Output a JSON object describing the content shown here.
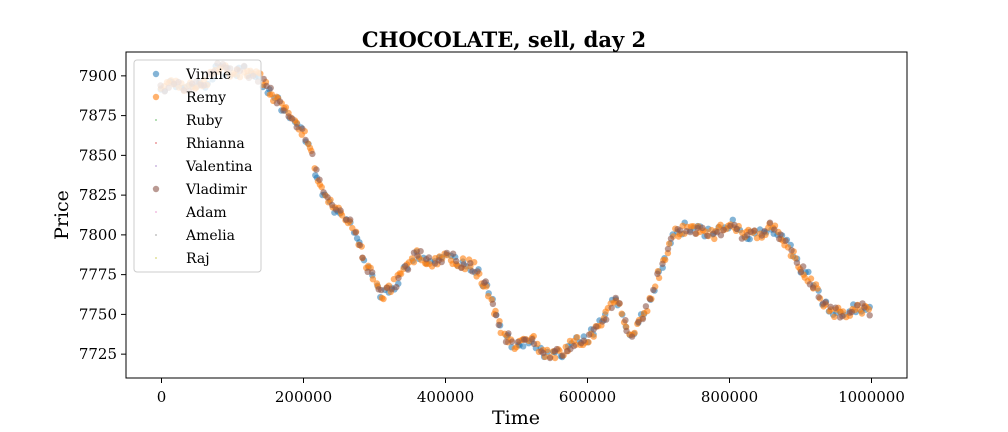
{
  "chart_data": {
    "type": "scatter",
    "title": "CHOCOLATE, sell, day 2",
    "xlabel": "Time",
    "ylabel": "Price",
    "xlim": [
      -50000,
      1050000
    ],
    "ylim": [
      7710,
      7915
    ],
    "xticks": [
      0,
      200000,
      400000,
      600000,
      800000,
      1000000
    ],
    "xtick_labels": [
      "0",
      "200000",
      "400000",
      "600000",
      "800000",
      "1000000"
    ],
    "yticks": [
      7725,
      7750,
      7775,
      7800,
      7825,
      7850,
      7875,
      7900
    ],
    "ytick_labels": [
      "7725",
      "7750",
      "7775",
      "7800",
      "7825",
      "7850",
      "7875",
      "7900"
    ],
    "grid": false,
    "legend_position": "upper-left",
    "price_path": [
      [
        0,
        7893
      ],
      [
        20000,
        7895
      ],
      [
        40000,
        7893
      ],
      [
        60000,
        7895
      ],
      [
        80000,
        7905
      ],
      [
        100000,
        7902
      ],
      [
        120000,
        7903
      ],
      [
        140000,
        7898
      ],
      [
        160000,
        7885
      ],
      [
        180000,
        7875
      ],
      [
        200000,
        7865
      ],
      [
        210000,
        7852
      ],
      [
        220000,
        7835
      ],
      [
        230000,
        7822
      ],
      [
        250000,
        7815
      ],
      [
        270000,
        7805
      ],
      [
        290000,
        7780
      ],
      [
        310000,
        7762
      ],
      [
        330000,
        7770
      ],
      [
        360000,
        7788
      ],
      [
        380000,
        7783
      ],
      [
        400000,
        7787
      ],
      [
        420000,
        7783
      ],
      [
        440000,
        7780
      ],
      [
        460000,
        7765
      ],
      [
        480000,
        7738
      ],
      [
        500000,
        7730
      ],
      [
        520000,
        7735
      ],
      [
        540000,
        7725
      ],
      [
        560000,
        7725
      ],
      [
        580000,
        7732
      ],
      [
        600000,
        7735
      ],
      [
        620000,
        7745
      ],
      [
        640000,
        7760
      ],
      [
        660000,
        7735
      ],
      [
        680000,
        7750
      ],
      [
        700000,
        7775
      ],
      [
        720000,
        7800
      ],
      [
        740000,
        7805
      ],
      [
        760000,
        7803
      ],
      [
        780000,
        7800
      ],
      [
        800000,
        7808
      ],
      [
        820000,
        7800
      ],
      [
        840000,
        7800
      ],
      [
        860000,
        7805
      ],
      [
        880000,
        7795
      ],
      [
        900000,
        7780
      ],
      [
        920000,
        7768
      ],
      [
        940000,
        7752
      ],
      [
        960000,
        7750
      ],
      [
        980000,
        7755
      ],
      [
        995000,
        7752
      ]
    ],
    "series": [
      {
        "name": "Vinnie",
        "color": "#1f77b4",
        "marker": "large",
        "alpha": 0.55,
        "start_time": 0,
        "end_time": 1000000,
        "step": 5500,
        "seed": 11
      },
      {
        "name": "Remy",
        "color": "#ff7f0e",
        "marker": "large",
        "alpha": 0.6,
        "start_time": 0,
        "end_time": 1000000,
        "step": 3600,
        "seed": 23
      },
      {
        "name": "Ruby",
        "color": "#2ca02c",
        "marker": "tiny",
        "alpha": 0.6,
        "start_time": 0,
        "end_time": 0,
        "step": 0,
        "seed": 0
      },
      {
        "name": "Rhianna",
        "color": "#d62728",
        "marker": "tiny",
        "alpha": 0.6,
        "start_time": 0,
        "end_time": 0,
        "step": 0,
        "seed": 0
      },
      {
        "name": "Valentina",
        "color": "#9467bd",
        "marker": "tiny",
        "alpha": 0.6,
        "start_time": 0,
        "end_time": 0,
        "step": 0,
        "seed": 0
      },
      {
        "name": "Vladimir",
        "color": "#8c564b",
        "marker": "large",
        "alpha": 0.6,
        "start_time": 0,
        "end_time": 1000000,
        "step": 6200,
        "seed": 37
      },
      {
        "name": "Adam",
        "color": "#e377c2",
        "marker": "tiny",
        "alpha": 0.6,
        "start_time": 0,
        "end_time": 0,
        "step": 0,
        "seed": 0
      },
      {
        "name": "Amelia",
        "color": "#7f7f7f",
        "marker": "tiny",
        "alpha": 0.6,
        "start_time": 0,
        "end_time": 0,
        "step": 0,
        "seed": 0
      },
      {
        "name": "Raj",
        "color": "#bcbd22",
        "marker": "tiny",
        "alpha": 0.6,
        "start_time": 0,
        "end_time": 0,
        "step": 0,
        "seed": 0
      }
    ]
  }
}
